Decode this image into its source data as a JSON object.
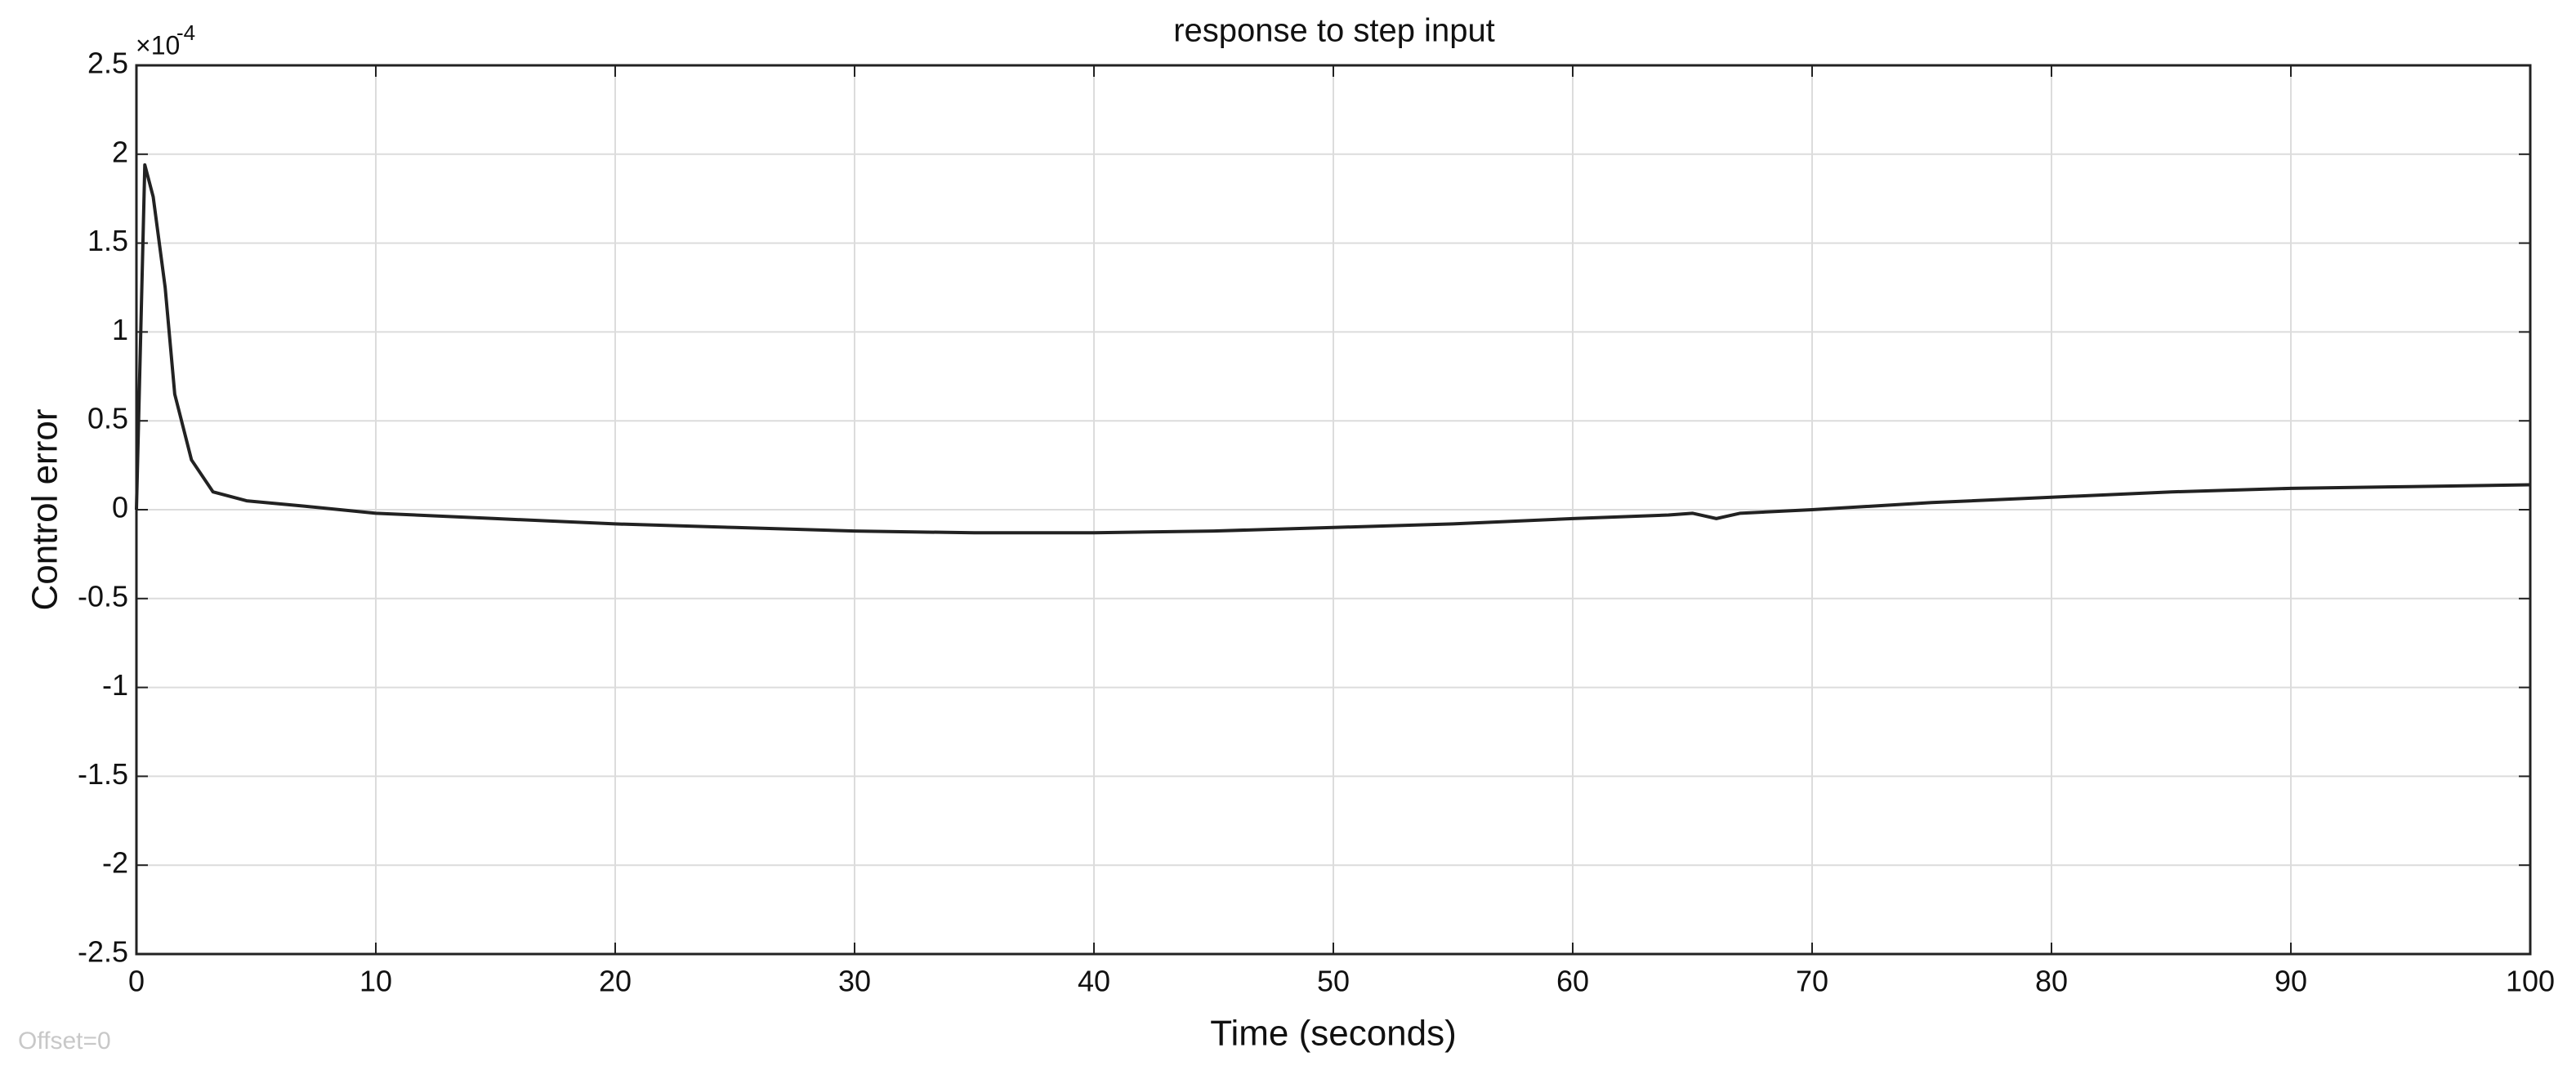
{
  "chart_data": {
    "type": "line",
    "title": "response to step input",
    "xlabel": "Time (seconds)",
    "ylabel": "Control error",
    "y_exponent_base": "×10",
    "y_exponent_power": "-4",
    "footnote": "Offset=0",
    "x": [
      0,
      0.35,
      0.7,
      1.2,
      1.6,
      2.3,
      3.2,
      4.6,
      7,
      10,
      15,
      20,
      25,
      30,
      35,
      40,
      45,
      50,
      55,
      60,
      64,
      65,
      66,
      67,
      70,
      75,
      80,
      85,
      90,
      95,
      100
    ],
    "values": [
      0,
      1.94,
      1.76,
      1.25,
      0.65,
      0.28,
      0.1,
      0.05,
      0.02,
      -0.02,
      -0.05,
      -0.08,
      -0.1,
      -0.12,
      -0.13,
      -0.13,
      -0.12,
      -0.1,
      -0.08,
      -0.05,
      -0.03,
      -0.02,
      -0.05,
      -0.02,
      0,
      0.04,
      0.07,
      0.1,
      0.12,
      0.13,
      0.14
    ],
    "color": "#222222",
    "xlim": [
      0,
      100
    ],
    "xticks": [
      0,
      10,
      20,
      30,
      40,
      50,
      60,
      70,
      80,
      90,
      100
    ],
    "ylim": [
      -2.5,
      2.5
    ],
    "yticks": [
      -2.5,
      -2,
      -1.5,
      -1,
      -0.5,
      0,
      0.5,
      1,
      1.5,
      2,
      2.5
    ],
    "grid": true
  }
}
